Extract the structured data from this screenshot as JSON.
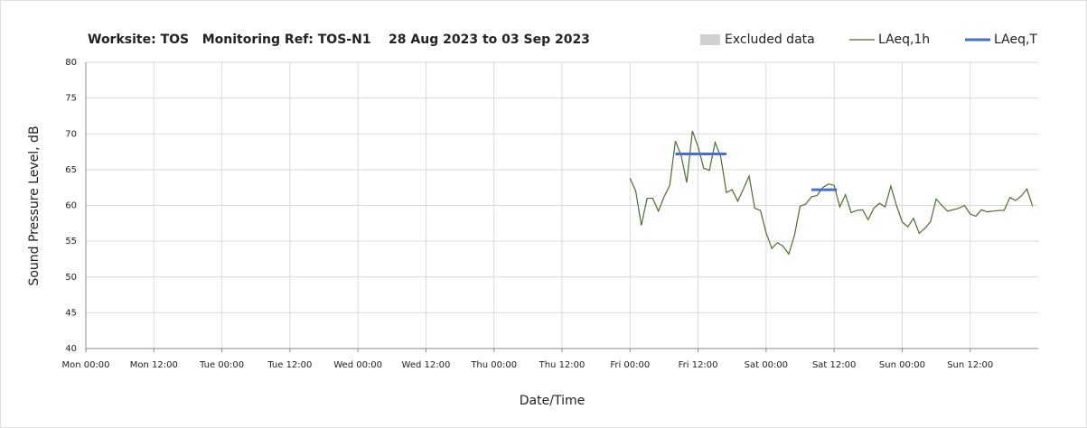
{
  "chart_data": {
    "type": "line",
    "title": "Worksite: TOS   Monitoring Ref: TOS-N1    28 Aug 2023 to 03 Sep 2023",
    "x_label": "Date/Time",
    "y_label": "Sound Pressure Level, dB",
    "xlim": [
      0,
      168
    ],
    "xticks": [
      {
        "value": 0,
        "label": "Mon 00:00"
      },
      {
        "value": 12,
        "label": "Mon 12:00"
      },
      {
        "value": 24,
        "label": "Tue 00:00"
      },
      {
        "value": 36,
        "label": "Tue 12:00"
      },
      {
        "value": 48,
        "label": "Wed 00:00"
      },
      {
        "value": 60,
        "label": "Wed 12:00"
      },
      {
        "value": 72,
        "label": "Thu 00:00"
      },
      {
        "value": 84,
        "label": "Thu 12:00"
      },
      {
        "value": 96,
        "label": "Fri 00:00"
      },
      {
        "value": 108,
        "label": "Fri 12:00"
      },
      {
        "value": 120,
        "label": "Sat 00:00"
      },
      {
        "value": 132,
        "label": "Sat 12:00"
      },
      {
        "value": 144,
        "label": "Sun 00:00"
      },
      {
        "value": 156,
        "label": "Sun 12:00"
      }
    ],
    "ylim": [
      40,
      80
    ],
    "yticks": [
      40,
      45,
      50,
      55,
      60,
      65,
      70,
      75,
      80
    ],
    "grid": true,
    "legend": "top-right",
    "series": [
      {
        "name": "Excluded data",
        "color": "#d0d0d0",
        "x": [],
        "values": []
      },
      {
        "name": "LAeq,1h",
        "color": "#4e6b30",
        "x": [
          96,
          97,
          98,
          99,
          100,
          101,
          102,
          103,
          104,
          105,
          106,
          107,
          108,
          109,
          110,
          111,
          112,
          113,
          114,
          115,
          116,
          117,
          118,
          119,
          120,
          121,
          122,
          123,
          124,
          125,
          126,
          127,
          128,
          129,
          130,
          131,
          132,
          133,
          134,
          135,
          136,
          137,
          138,
          139,
          140,
          141,
          142,
          143,
          144,
          145,
          146,
          147,
          148,
          149,
          150,
          151,
          152,
          153,
          154,
          155,
          156,
          157,
          158,
          159,
          160,
          161,
          162,
          163,
          164,
          165,
          166,
          167
        ],
        "values": [
          63.8,
          62,
          57.2,
          61,
          61,
          59.2,
          61.2,
          62.8,
          69,
          67,
          63.2,
          70.4,
          68.2,
          65.2,
          64.9,
          68.8,
          66.8,
          61.8,
          62.2,
          60.6,
          62.3,
          64.1,
          59.6,
          59.3,
          56.2,
          54,
          54.8,
          54.3,
          53.2,
          55.8,
          59.9,
          60.2,
          61.2,
          61.4,
          62.5,
          63,
          62.8,
          59.8,
          61.5,
          59,
          59.3,
          59.4,
          58,
          59.6,
          60.3,
          59.8,
          62.7,
          60,
          57.7,
          57,
          58.2,
          56.1,
          56.8,
          57.7,
          60.9,
          60,
          59.2,
          59.4,
          59.6,
          60,
          58.8,
          58.5,
          59.4,
          59.1,
          59.2,
          59.3,
          59.3,
          61.1,
          60.7,
          61.3,
          62.3,
          59.9
        ]
      },
      {
        "name": "LAeq,T",
        "color": "#4472c4",
        "x": [
          104,
          113,
          120,
          128,
          132.5
        ],
        "values": [
          67.2,
          67.2,
          null,
          62.2,
          62.2
        ]
      }
    ]
  }
}
